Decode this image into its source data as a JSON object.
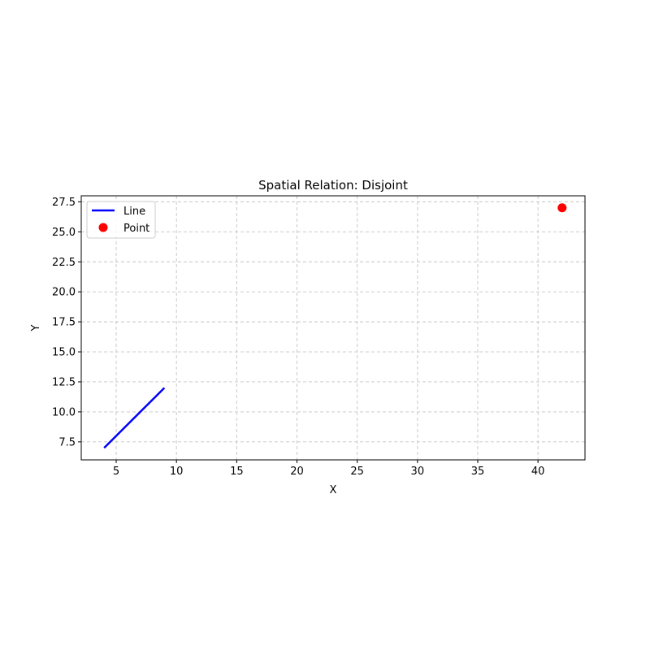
{
  "chart_data": {
    "type": "line",
    "title": "Spatial Relation: Disjoint",
    "xlabel": "X",
    "ylabel": "Y",
    "xlim": [
      2.1,
      43.9
    ],
    "ylim": [
      6.0,
      28.0
    ],
    "xticks": [
      5,
      10,
      15,
      20,
      25,
      30,
      35,
      40
    ],
    "yticks": [
      7.5,
      10.0,
      12.5,
      15.0,
      17.5,
      20.0,
      22.5,
      25.0,
      27.5
    ],
    "grid": true,
    "legend_position": "upper-left",
    "series": [
      {
        "name": "Line",
        "kind": "line",
        "color": "#0000ff",
        "x": [
          4,
          9
        ],
        "y": [
          7,
          12
        ]
      },
      {
        "name": "Point",
        "kind": "scatter",
        "color": "#ff0000",
        "x": [
          42
        ],
        "y": [
          27
        ]
      }
    ]
  }
}
